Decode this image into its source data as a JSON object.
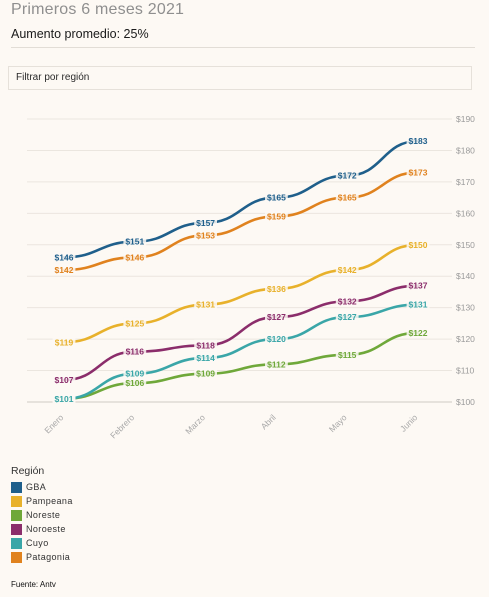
{
  "header": {
    "title": "Primeros 6 meses 2021",
    "subtitle": "Aumento promedio: 25%"
  },
  "filter": {
    "label": "Filtrar por región"
  },
  "legend": {
    "title": "Región"
  },
  "source": "Fuente: Antv",
  "chart_data": {
    "type": "line",
    "categories": [
      "Enero",
      "Febrero",
      "Marzo",
      "Abril",
      "Mayo",
      "Junio"
    ],
    "y_ticks": [
      "$190",
      "$180",
      "$170",
      "$160",
      "$150",
      "$140",
      "$130",
      "$120",
      "$110",
      "$100"
    ],
    "ylim": [
      100,
      190
    ],
    "grid": true,
    "legend_position": "bottom-left",
    "label_prefix": "$",
    "series": [
      {
        "name": "GBA",
        "color": "#1f5f8b",
        "values": [
          146,
          151,
          157,
          165,
          172,
          183
        ]
      },
      {
        "name": "Pampeana",
        "color": "#e8b12b",
        "values": [
          119,
          125,
          131,
          136,
          142,
          150
        ]
      },
      {
        "name": "Noreste",
        "color": "#6fa83a",
        "values": [
          101,
          106,
          109,
          112,
          115,
          122
        ]
      },
      {
        "name": "Noroeste",
        "color": "#8b2d6b",
        "values": [
          107,
          116,
          118,
          127,
          132,
          137
        ]
      },
      {
        "name": "Cuyo",
        "color": "#3aa6a8",
        "values": [
          101,
          109,
          114,
          120,
          127,
          131
        ]
      },
      {
        "name": "Patagonia",
        "color": "#e0821e",
        "values": [
          142,
          146,
          153,
          159,
          165,
          173
        ]
      }
    ]
  }
}
